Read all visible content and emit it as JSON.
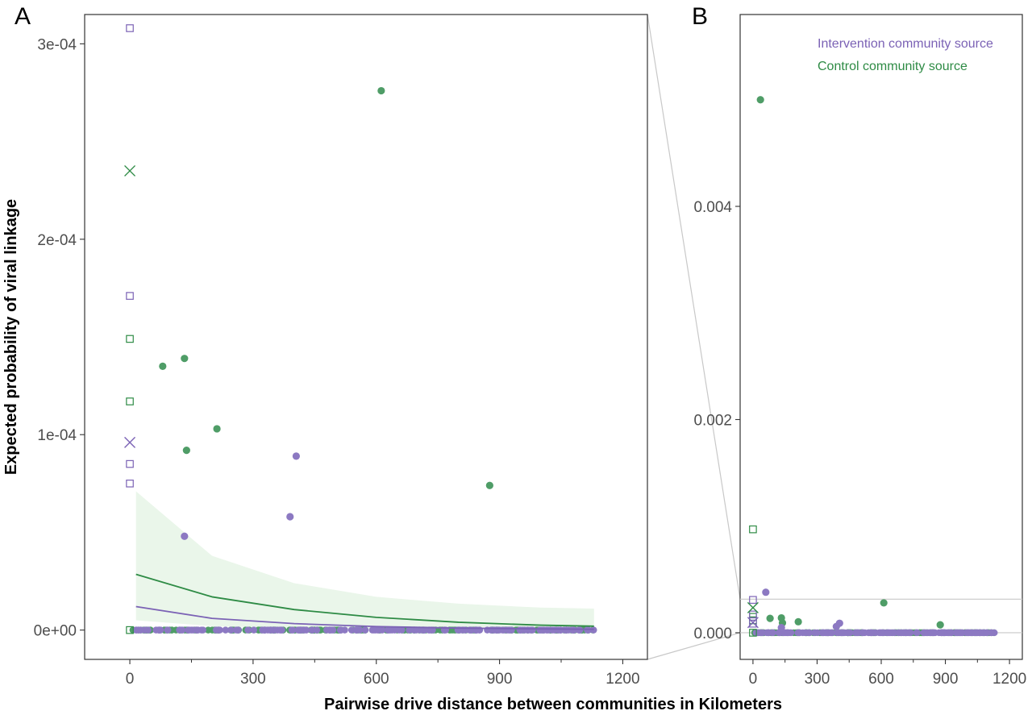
{
  "colors": {
    "intervention": "#7b62b5",
    "control": "#2e8b45",
    "control_point": "#4f9d67",
    "intervention_point": "#8c79c2",
    "ribbon": "#eaf6ea",
    "frame": "#333333",
    "connector": "#c8c8c8"
  },
  "xlabel": "Pairwise drive distance between communities in Kilometers",
  "ylabel": "Expected probability of viral linkage",
  "chart_data": [
    {
      "panel": "A",
      "type": "scatter",
      "xlabel": "Pairwise drive distance between communities in Kilometers",
      "ylabel": "Expected probability of viral linkage",
      "xlim": [
        -110,
        1260
      ],
      "ylim": [
        -1.5e-05,
        0.000315
      ],
      "xticks": [
        0,
        300,
        600,
        900,
        1200
      ],
      "xtick_labels": [
        "0",
        "300",
        "600",
        "900",
        "1200"
      ],
      "yticks": [
        0,
        0.0001,
        0.0002,
        0.0003
      ],
      "ytick_labels": [
        "0e+00",
        "1e-04",
        "2e-04",
        "3e-04"
      ],
      "series": [
        {
          "group": "control",
          "marker": "circle",
          "points": [
            [
              612,
              0.000276
            ],
            [
              80,
              0.000135
            ],
            [
              133,
              0.000139
            ],
            [
              212,
              0.000103
            ],
            [
              138,
              9.2e-05
            ],
            [
              876,
              7.4e-05
            ]
          ]
        },
        {
          "group": "intervention",
          "marker": "circle",
          "points": [
            [
              405,
              8.9e-05
            ],
            [
              390,
              5.8e-05
            ],
            [
              133,
              4.8e-05
            ]
          ]
        },
        {
          "group": "intervention",
          "marker": "square-open",
          "points": [
            [
              0,
              0.000308
            ],
            [
              0,
              0.000171
            ],
            [
              0,
              8.5e-05
            ],
            [
              0,
              7.5e-05
            ]
          ]
        },
        {
          "group": "control",
          "marker": "square-open",
          "points": [
            [
              0,
              0.000149
            ],
            [
              0,
              0.000117
            ],
            [
              0,
              0.0
            ]
          ]
        },
        {
          "group": "control",
          "marker": "cross",
          "points": [
            [
              0,
              0.000235
            ]
          ]
        },
        {
          "group": "intervention",
          "marker": "cross",
          "points": [
            [
              0,
              9.6e-05
            ]
          ]
        }
      ],
      "trend_lines": [
        {
          "group": "control",
          "x": [
            15,
            200,
            400,
            600,
            800,
            1000,
            1130
          ],
          "y": [
            2.85e-05,
            1.7e-05,
            1.05e-05,
            6.5e-06,
            4e-06,
            2.5e-06,
            2e-06
          ]
        },
        {
          "group": "intervention",
          "x": [
            15,
            200,
            400,
            600,
            800,
            1000,
            1130
          ],
          "y": [
            1.2e-05,
            6e-06,
            3.3e-06,
            1.8e-06,
            1e-06,
            6e-07,
            4e-07
          ]
        }
      ],
      "ribbon": {
        "group": "control",
        "x": [
          15,
          200,
          400,
          600,
          800,
          1000,
          1130
        ],
        "ymin": [
          5e-06,
          2e-06,
          1e-06,
          5e-07,
          3e-07,
          2e-07,
          1e-07
        ],
        "ymax": [
          7.1e-05,
          3.8e-05,
          2.4e-05,
          1.7e-05,
          1.35e-05,
          1.15e-05,
          1.1e-05
        ]
      }
    },
    {
      "panel": "B",
      "type": "scatter",
      "xlim": [
        -60,
        1260
      ],
      "ylim": [
        -0.00025,
        0.0058
      ],
      "xticks": [
        0,
        300,
        600,
        900,
        1200
      ],
      "xtick_labels": [
        "0",
        "300",
        "600",
        "900",
        "1200"
      ],
      "yticks": [
        0,
        0.002,
        0.004
      ],
      "ytick_labels": [
        "0.000",
        "0.002",
        "0.004"
      ],
      "legend": {
        "position": "top-right",
        "entries": [
          {
            "group": "intervention",
            "label": "Intervention community source"
          },
          {
            "group": "control",
            "label": "Control community source"
          }
        ]
      },
      "zoom_band_ymax": 0.000315,
      "series": [
        {
          "group": "control",
          "marker": "circle",
          "points": [
            [
              35,
              0.005
            ],
            [
              612,
              0.00028
            ],
            [
              80,
              0.000135
            ],
            [
              133,
              0.000139
            ],
            [
              212,
              0.000103
            ],
            [
              138,
              9.2e-05
            ],
            [
              876,
              7.4e-05
            ]
          ]
        },
        {
          "group": "intervention",
          "marker": "circle",
          "points": [
            [
              60,
              0.00038
            ],
            [
              405,
              8.9e-05
            ],
            [
              390,
              5.8e-05
            ],
            [
              133,
              4.8e-05
            ]
          ]
        },
        {
          "group": "control",
          "marker": "square-open",
          "points": [
            [
              0,
              0.00097
            ],
            [
              0,
              0.000149
            ],
            [
              0,
              0.000117
            ],
            [
              0,
              0.0
            ]
          ]
        },
        {
          "group": "intervention",
          "marker": "square-open",
          "points": [
            [
              0,
              0.000308
            ],
            [
              0,
              0.000171
            ],
            [
              0,
              8.5e-05
            ]
          ]
        },
        {
          "group": "control",
          "marker": "cross",
          "points": [
            [
              0,
              0.000235
            ]
          ]
        },
        {
          "group": "intervention",
          "marker": "cross",
          "points": [
            [
              0,
              9.6e-05
            ]
          ]
        }
      ]
    }
  ]
}
